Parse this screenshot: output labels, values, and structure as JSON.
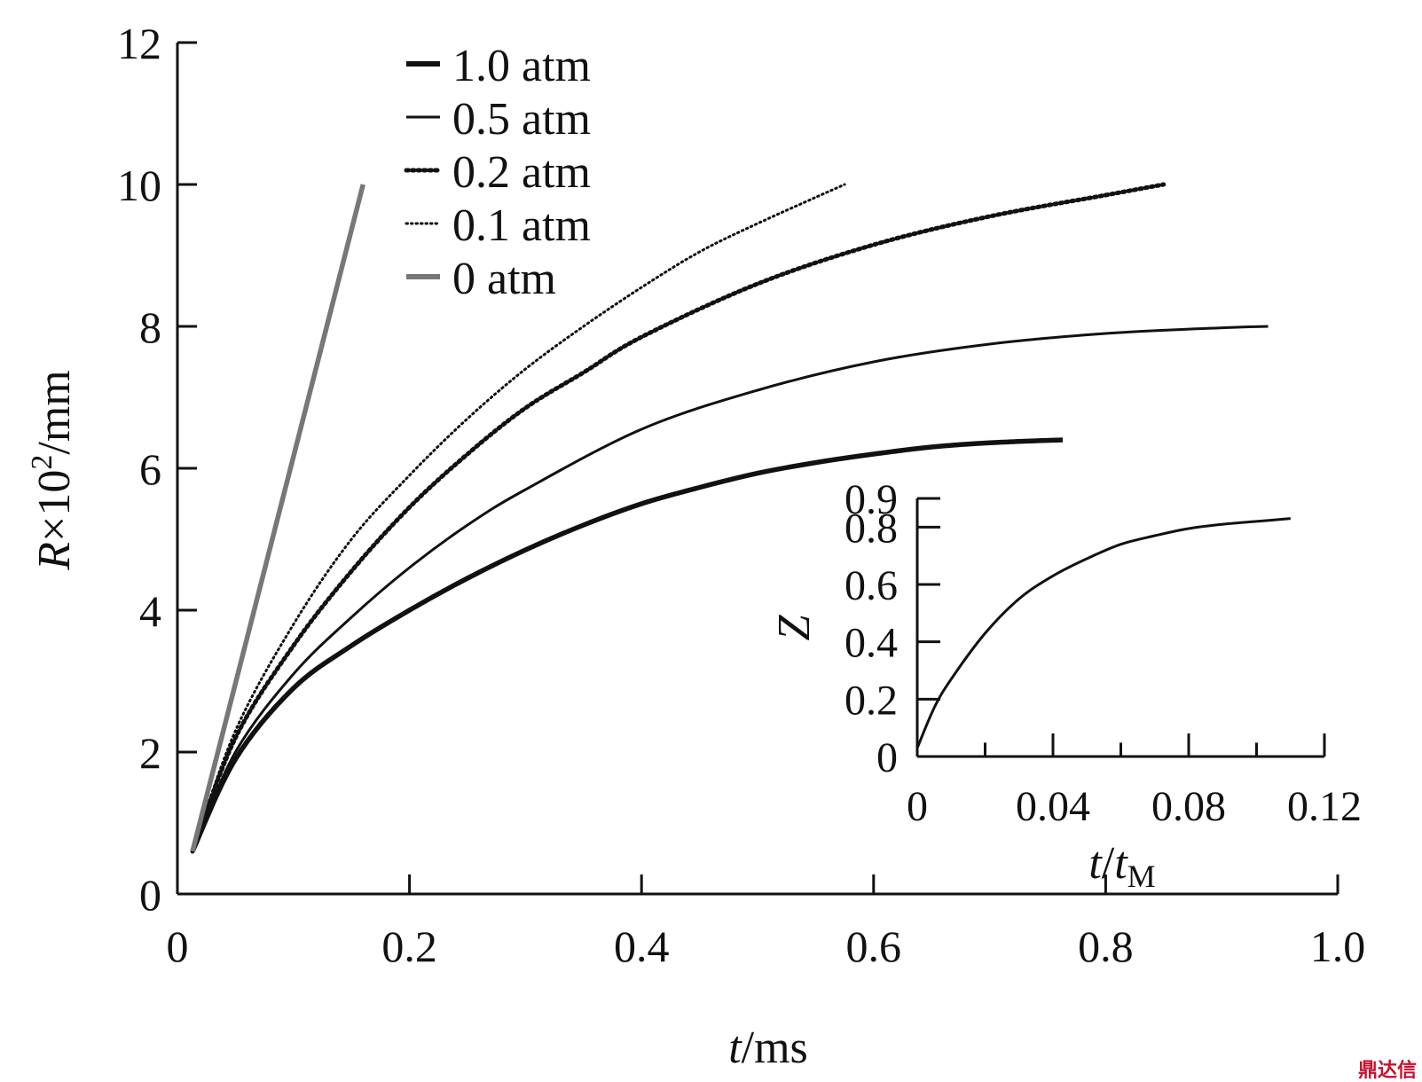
{
  "chart_data": [
    {
      "type": "line",
      "x_axis": {
        "var": "t",
        "unit": "/ms"
      },
      "y_axis": {
        "var": "R",
        "mult": "×10",
        "exp": "2",
        "unit": "/mm"
      },
      "xlim": [
        0,
        1.0
      ],
      "ylim": [
        0,
        12
      ],
      "xticks": [
        0,
        0.2,
        0.4,
        0.6,
        0.8,
        1.0
      ],
      "xtick_labels": [
        "0",
        "0.2",
        "0.4",
        "0.6",
        "0.8",
        "1.0"
      ],
      "yticks": [
        0,
        2,
        4,
        6,
        8,
        10,
        12
      ],
      "ytick_labels": [
        "0",
        "2",
        "4",
        "6",
        "8",
        "10",
        "12"
      ],
      "grid": false,
      "legend_position": "top-center",
      "series": [
        {
          "name": "1.0 atm",
          "style": "thick-solid",
          "color": "#111111",
          "x": [
            0.013,
            0.05,
            0.1,
            0.15,
            0.2,
            0.25,
            0.3,
            0.35,
            0.4,
            0.45,
            0.5,
            0.55,
            0.6,
            0.65,
            0.7,
            0.763
          ],
          "y": [
            0.6,
            1.9,
            2.9,
            3.5,
            4.0,
            4.45,
            4.85,
            5.2,
            5.5,
            5.73,
            5.93,
            6.08,
            6.2,
            6.3,
            6.36,
            6.4
          ]
        },
        {
          "name": "0.5 atm",
          "style": "solid",
          "color": "#111111",
          "x": [
            0.013,
            0.05,
            0.1,
            0.15,
            0.2,
            0.25,
            0.3,
            0.4,
            0.5,
            0.6,
            0.7,
            0.8,
            0.9,
            0.94
          ],
          "y": [
            0.6,
            2.0,
            3.1,
            3.9,
            4.6,
            5.2,
            5.7,
            6.55,
            7.1,
            7.5,
            7.75,
            7.9,
            7.98,
            8.0
          ]
        },
        {
          "name": "0.2 atm",
          "style": "thick-dotted",
          "color": "#111111",
          "x": [
            0.013,
            0.05,
            0.1,
            0.15,
            0.2,
            0.25,
            0.3,
            0.35,
            0.4,
            0.5,
            0.6,
            0.7,
            0.8,
            0.85
          ],
          "y": [
            0.6,
            2.2,
            3.5,
            4.55,
            5.45,
            6.2,
            6.85,
            7.35,
            7.85,
            8.6,
            9.15,
            9.55,
            9.85,
            10.0
          ]
        },
        {
          "name": "0.1 atm",
          "style": "dotted",
          "color": "#111111",
          "x": [
            0.013,
            0.05,
            0.1,
            0.15,
            0.2,
            0.25,
            0.3,
            0.35,
            0.4,
            0.45,
            0.5,
            0.575
          ],
          "y": [
            0.6,
            2.3,
            3.8,
            5.0,
            5.9,
            6.7,
            7.4,
            8.0,
            8.55,
            9.05,
            9.45,
            10.0
          ]
        },
        {
          "name": "0 atm",
          "style": "thick-solid-gray",
          "color": "#777777",
          "x": [
            0.013,
            0.16
          ],
          "y": [
            0.6,
            10.0
          ]
        }
      ]
    },
    {
      "type": "line",
      "inset": true,
      "x_axis": {
        "var": "t",
        "sub_var": "t",
        "sub": "M"
      },
      "y_axis": {
        "var": "Z"
      },
      "xlim": [
        0,
        0.12
      ],
      "ylim": [
        0,
        0.9
      ],
      "xticks": [
        0,
        0.04,
        0.08,
        0.12
      ],
      "xtick_labels": [
        "0",
        "0.04",
        "0.08",
        "0.12"
      ],
      "yticks": [
        0,
        0.2,
        0.4,
        0.6,
        0.8,
        0.9
      ],
      "ytick_labels": [
        "0",
        "0.2",
        "0.4",
        "0.6",
        "0.8",
        "0.9"
      ],
      "minor_xticks": [
        0.02,
        0.06,
        0.1
      ],
      "grid": false,
      "series": [
        {
          "style": "solid",
          "color": "#111111",
          "x": [
            0.0,
            0.005,
            0.01,
            0.02,
            0.03,
            0.04,
            0.05,
            0.06,
            0.07,
            0.08,
            0.09,
            0.1,
            0.11
          ],
          "y": [
            0.03,
            0.17,
            0.27,
            0.43,
            0.55,
            0.63,
            0.69,
            0.74,
            0.77,
            0.795,
            0.81,
            0.82,
            0.83
          ]
        }
      ]
    }
  ],
  "watermark": "鼎达信"
}
